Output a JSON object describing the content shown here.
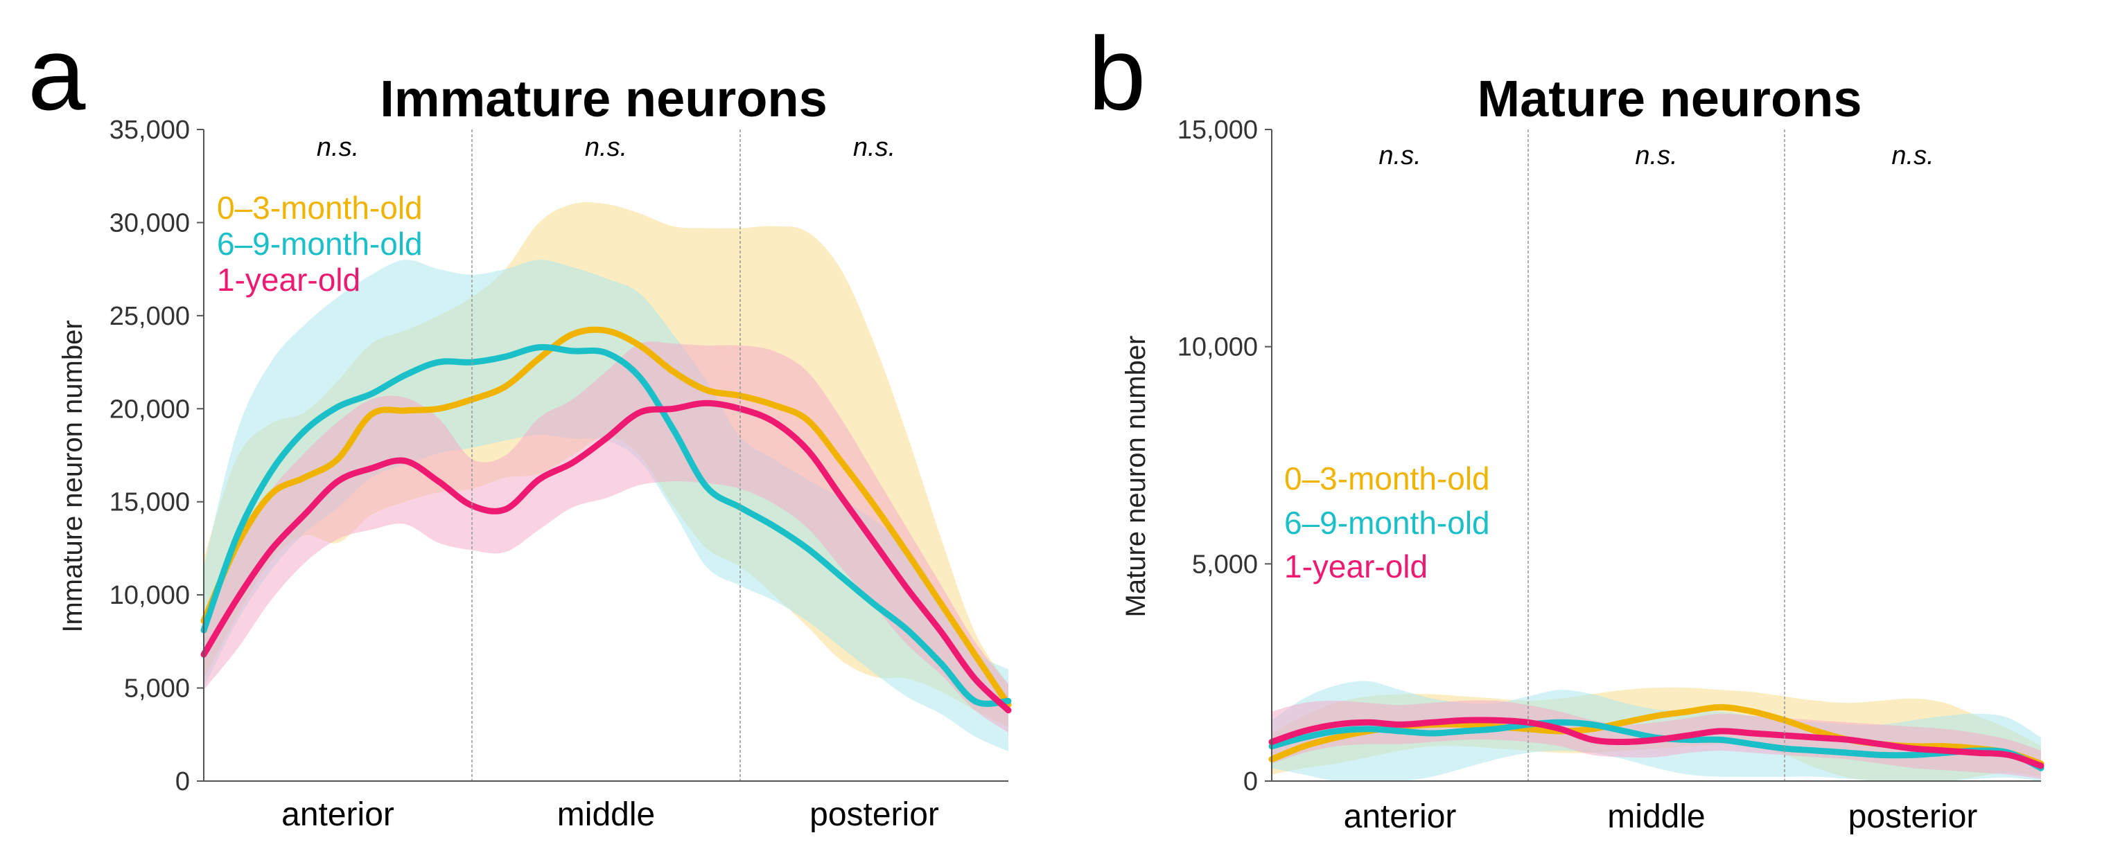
{
  "chart_data": [
    {
      "type": "area",
      "panel_label": "a",
      "title": "Immature neurons",
      "ylabel": "Immature neuron number",
      "ylim": [
        0,
        35000
      ],
      "yticks": [
        0,
        5000,
        10000,
        15000,
        20000,
        25000,
        30000,
        35000
      ],
      "ytick_labels": [
        "0",
        "5,000",
        "10,000",
        "15,000",
        "20,000",
        "25,000",
        "30,000",
        "35,000"
      ],
      "xlim": [
        0,
        12
      ],
      "regions": [
        "anterior",
        "middle",
        "posterior"
      ],
      "region_boundaries": [
        4,
        8
      ],
      "significance": [
        "n.s.",
        "n.s.",
        "n.s."
      ],
      "legend": [
        "0–3-month-old",
        "6–9-month-old",
        "1-year-old"
      ],
      "legend_placement": "top-left",
      "grid": false,
      "x": [
        0,
        0.5,
        1,
        1.5,
        2,
        2.5,
        3,
        3.5,
        4,
        4.5,
        5,
        5.5,
        6,
        6.5,
        7,
        7.5,
        8,
        8.5,
        9,
        9.5,
        10,
        10.5,
        11,
        11.5,
        12
      ],
      "series": [
        {
          "name": "0–3-month-old",
          "color": "#F0B400",
          "band_color": "#F7DA86",
          "values": [
            8600,
            12700,
            15400,
            16300,
            17300,
            19700,
            19900,
            20000,
            20500,
            21200,
            22700,
            24000,
            24200,
            23400,
            22000,
            21000,
            20700,
            20200,
            19400,
            17200,
            14800,
            12200,
            9500,
            6800,
            4100
          ],
          "upper": [
            12000,
            17400,
            19200,
            19800,
            21500,
            23500,
            24200,
            25000,
            26000,
            27500,
            30000,
            31000,
            31000,
            30500,
            29800,
            29700,
            29700,
            29800,
            29500,
            27500,
            23500,
            18500,
            13000,
            8000,
            5200
          ],
          "lower": [
            5500,
            8900,
            11800,
            13200,
            12800,
            14300,
            15000,
            15500,
            15700,
            16300,
            16500,
            17500,
            18500,
            17500,
            14800,
            12500,
            11500,
            10000,
            8300,
            6500,
            5600,
            5500,
            4800,
            3800,
            2900
          ]
        },
        {
          "name": "6–9-month-old",
          "color": "#1ABFC8",
          "band_color": "#A6E6EE",
          "values": [
            8100,
            13200,
            16600,
            18800,
            20100,
            20800,
            21800,
            22500,
            22500,
            22800,
            23300,
            23100,
            23000,
            21700,
            18900,
            15800,
            14700,
            13700,
            12500,
            11000,
            9500,
            8100,
            6300,
            4300,
            4300
          ],
          "upper": [
            11500,
            18800,
            22500,
            24500,
            26000,
            27200,
            28000,
            27500,
            27200,
            27500,
            28000,
            27600,
            27000,
            26200,
            24000,
            21500,
            18500,
            17300,
            16200,
            15200,
            14000,
            12500,
            9800,
            7000,
            6000
          ],
          "lower": [
            5000,
            8600,
            11300,
            13300,
            14700,
            16300,
            17000,
            17600,
            17900,
            18300,
            18600,
            18400,
            18300,
            17200,
            14500,
            11500,
            10500,
            9700,
            8600,
            7200,
            5800,
            4500,
            3600,
            2400,
            1600
          ]
        },
        {
          "name": "1-year-old",
          "color": "#EE1A72",
          "band_color": "#F5A7C8",
          "values": [
            6800,
            9800,
            12400,
            14300,
            16100,
            16800,
            17200,
            16100,
            14800,
            14600,
            16200,
            17100,
            18400,
            19800,
            20000,
            20300,
            20000,
            19300,
            17800,
            15300,
            12800,
            10300,
            8000,
            5500,
            3800
          ],
          "upper": [
            8500,
            12600,
            15600,
            17600,
            19300,
            20500,
            20600,
            19500,
            17300,
            17500,
            19500,
            20500,
            22000,
            23500,
            23500,
            23400,
            23400,
            23100,
            22000,
            19500,
            16500,
            13500,
            10500,
            7500,
            5200
          ],
          "lower": [
            4900,
            7100,
            9700,
            11700,
            13000,
            13500,
            13800,
            12800,
            12400,
            12300,
            13500,
            14700,
            15200,
            15900,
            16100,
            16000,
            15700,
            14900,
            13600,
            11500,
            9400,
            7300,
            5700,
            3800,
            2600
          ]
        }
      ]
    },
    {
      "type": "area",
      "panel_label": "b",
      "title": "Mature neurons",
      "ylabel": "Mature neuron number",
      "ylim": [
        0,
        15000
      ],
      "yticks": [
        0,
        5000,
        10000,
        15000
      ],
      "ytick_labels": [
        "0",
        "5,000",
        "10,000",
        "15,000"
      ],
      "xlim": [
        0,
        12
      ],
      "regions": [
        "anterior",
        "middle",
        "posterior"
      ],
      "region_boundaries": [
        4,
        8
      ],
      "significance": [
        "n.s.",
        "n.s.",
        "n.s."
      ],
      "legend": [
        "0–3-month-old",
        "6–9-month-old",
        "1-year-old"
      ],
      "legend_placement": "center-left",
      "grid": false,
      "x": [
        0,
        0.5,
        1,
        1.5,
        2,
        2.5,
        3,
        3.5,
        4,
        4.5,
        5,
        5.5,
        6,
        6.5,
        7,
        7.5,
        8,
        8.5,
        9,
        9.5,
        10,
        10.5,
        11,
        11.5,
        12
      ],
      "series": [
        {
          "name": "0–3-month-old",
          "color": "#F0B400",
          "band_color": "#F7DA86",
          "values": [
            500,
            800,
            1000,
            1150,
            1250,
            1300,
            1300,
            1250,
            1200,
            1150,
            1200,
            1350,
            1500,
            1600,
            1700,
            1600,
            1400,
            1150,
            950,
            850,
            800,
            800,
            750,
            650,
            400
          ],
          "upper": [
            1100,
            1500,
            1800,
            1950,
            2000,
            2000,
            1950,
            1900,
            1850,
            1900,
            2000,
            2100,
            2150,
            2150,
            2100,
            2050,
            1950,
            1850,
            1800,
            1850,
            1900,
            1800,
            1500,
            1200,
            800
          ],
          "lower": [
            150,
            300,
            400,
            550,
            700,
            800,
            800,
            750,
            700,
            650,
            650,
            700,
            750,
            800,
            850,
            800,
            600,
            300,
            80,
            0,
            0,
            0,
            100,
            200,
            100
          ]
        },
        {
          "name": "6–9-month-old",
          "color": "#1ABFC8",
          "band_color": "#A6E6EE",
          "values": [
            800,
            1000,
            1150,
            1200,
            1150,
            1100,
            1150,
            1200,
            1300,
            1350,
            1300,
            1150,
            1000,
            950,
            950,
            850,
            750,
            700,
            650,
            600,
            600,
            650,
            700,
            650,
            300
          ],
          "upper": [
            1400,
            1900,
            2200,
            2300,
            2100,
            1900,
            1800,
            1800,
            1950,
            2100,
            2000,
            1800,
            1650,
            1600,
            1600,
            1500,
            1400,
            1350,
            1300,
            1300,
            1400,
            1500,
            1550,
            1450,
            1000
          ],
          "lower": [
            300,
            150,
            0,
            0,
            0,
            100,
            300,
            500,
            650,
            700,
            650,
            500,
            300,
            150,
            100,
            100,
            100,
            100,
            50,
            0,
            0,
            0,
            50,
            80,
            0
          ]
        },
        {
          "name": "1-year-old",
          "color": "#EE1A72",
          "band_color": "#F5A7C8",
          "values": [
            900,
            1150,
            1300,
            1350,
            1300,
            1350,
            1400,
            1400,
            1350,
            1200,
            950,
            900,
            950,
            1050,
            1150,
            1100,
            1050,
            1000,
            950,
            850,
            750,
            700,
            650,
            600,
            350
          ],
          "upper": [
            1600,
            1800,
            1850,
            1800,
            1750,
            1800,
            1850,
            1850,
            1750,
            1600,
            1400,
            1300,
            1350,
            1450,
            1550,
            1500,
            1450,
            1400,
            1350,
            1300,
            1250,
            1200,
            1100,
            950,
            700
          ],
          "lower": [
            400,
            650,
            800,
            850,
            850,
            900,
            950,
            950,
            900,
            800,
            600,
            550,
            550,
            650,
            700,
            650,
            600,
            550,
            500,
            400,
            300,
            250,
            200,
            150,
            50
          ]
        }
      ]
    }
  ]
}
